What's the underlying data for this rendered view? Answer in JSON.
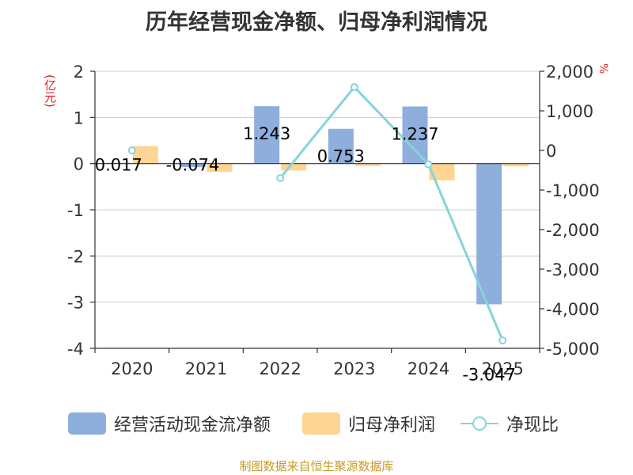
{
  "title": "历年经营现金净额、归母净利润情况",
  "left_unit": "(亿元)",
  "right_unit": "%",
  "source": "制图数据来自恒生聚源数据库",
  "colors": {
    "operating_cash": "#8eaedc",
    "net_profit": "#fed592",
    "ratio_line": "#86d4d9",
    "grid": "#cccccc",
    "axis": "#333333",
    "unit": "#e01e1e",
    "source": "#c79a2a"
  },
  "chart_data": {
    "type": "bar",
    "categories": [
      "2020",
      "2021",
      "2022",
      "2023",
      "2024",
      "2025"
    ],
    "left_axis": {
      "min": -4,
      "max": 2,
      "ticks": [
        2,
        1,
        0,
        -1,
        -2,
        -3,
        -4
      ],
      "tick_labels": [
        "2",
        "1",
        "0",
        "-1",
        "-2",
        "-3",
        "-4"
      ]
    },
    "right_axis": {
      "min": -5000,
      "max": 2000,
      "ticks": [
        2000,
        1000,
        0,
        -1000,
        -2000,
        -3000,
        -4000,
        -5000
      ],
      "tick_labels": [
        "2,000",
        "1,000",
        "0",
        "-1,000",
        "-2,000",
        "-3,000",
        "-4,000",
        "-5,000"
      ]
    },
    "grid": true,
    "legend_position": "bottom",
    "series": [
      {
        "name": "经营活动现金流净额",
        "kind": "bar",
        "axis": "left",
        "values": [
          0.017,
          -0.074,
          1.243,
          0.753,
          1.237,
          -3.047
        ],
        "labels": [
          "0.017",
          "-0.074",
          "1.243",
          "0.753",
          "1.237",
          "-3.047"
        ]
      },
      {
        "name": "归母净利润",
        "kind": "bar",
        "axis": "left",
        "values": [
          0.38,
          -0.18,
          -0.15,
          -0.05,
          -0.36,
          -0.06
        ]
      },
      {
        "name": "净现比",
        "kind": "line",
        "axis": "right",
        "values": [
          0,
          null,
          -700,
          1600,
          -350,
          -4800
        ]
      }
    ]
  }
}
